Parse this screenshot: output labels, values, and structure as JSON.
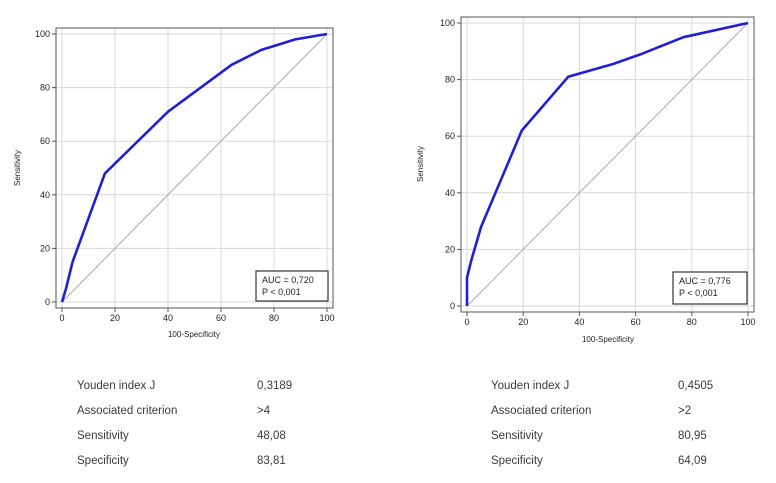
{
  "chart_data": [
    {
      "type": "line",
      "xlabel": "100-Specificity",
      "ylabel": "Sensitivity",
      "xlim": [
        0,
        100
      ],
      "ylim": [
        0,
        100
      ],
      "xticks": [
        0,
        20,
        40,
        60,
        80,
        100
      ],
      "yticks": [
        0,
        20,
        40,
        60,
        80,
        100
      ],
      "grid": true,
      "series": [
        {
          "color": "#1f1fd6",
          "x": [
            0,
            1.5,
            4,
            16.2,
            40,
            64,
            75,
            88,
            100
          ],
          "y": [
            0,
            5,
            15,
            48,
            71,
            88.5,
            94,
            98,
            100
          ]
        },
        {
          "color": "#aaaaaa",
          "x": [
            0,
            100
          ],
          "y": [
            0,
            100
          ]
        }
      ],
      "annotation": {
        "auc": "AUC = 0,720",
        "p": "P < 0,001"
      },
      "stats": [
        {
          "label": "Youden index J",
          "value": "0,3189"
        },
        {
          "label": "Associated criterion",
          "value": ">4"
        },
        {
          "label": "Sensitivity",
          "value": "48,08"
        },
        {
          "label": "Specificity",
          "value": "83,81"
        }
      ]
    },
    {
      "type": "line",
      "xlabel": "100-Specificity",
      "ylabel": "Sensitivity",
      "xlim": [
        0,
        100
      ],
      "ylim": [
        0,
        100
      ],
      "xticks": [
        0,
        20,
        40,
        60,
        80,
        100
      ],
      "yticks": [
        0,
        20,
        40,
        60,
        80,
        100
      ],
      "grid": true,
      "series": [
        {
          "color": "#1f1fd6",
          "x": [
            0,
            0,
            0,
            1.5,
            5,
            19.5,
            36,
            52,
            62,
            77,
            100
          ],
          "y": [
            0,
            5,
            10,
            16,
            28,
            62,
            81,
            85.5,
            89,
            95,
            100
          ]
        },
        {
          "color": "#aaaaaa",
          "x": [
            0,
            100
          ],
          "y": [
            0,
            100
          ]
        }
      ],
      "annotation": {
        "auc": "AUC = 0,776",
        "p": "P < 0,001"
      },
      "stats": [
        {
          "label": "Youden index J",
          "value": "0,4505"
        },
        {
          "label": "Associated criterion",
          "value": ">2"
        },
        {
          "label": "Sensitivity",
          "value": "80,95"
        },
        {
          "label": "Specificity",
          "value": "64,09"
        }
      ]
    }
  ]
}
